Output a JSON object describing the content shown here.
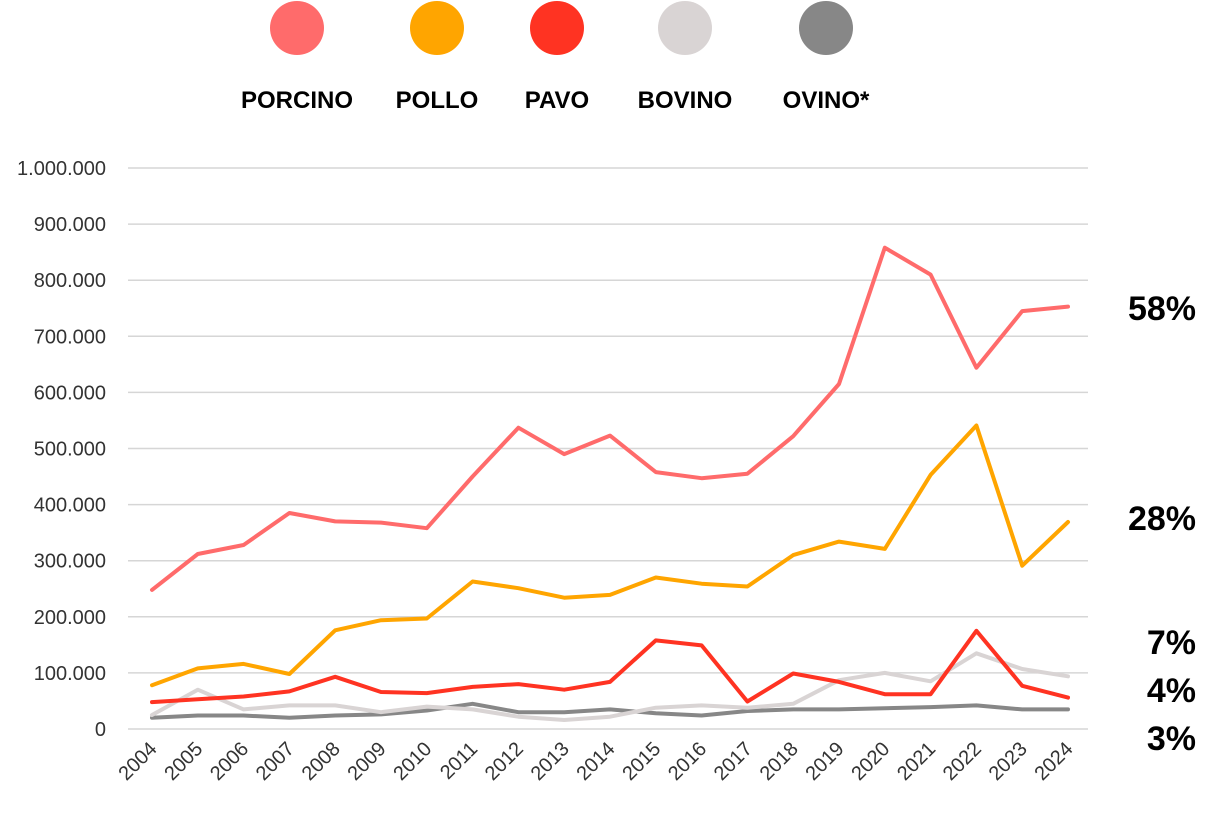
{
  "chart_data": {
    "type": "line",
    "x": [
      "2004",
      "2005",
      "2006",
      "2007",
      "2008",
      "2009",
      "2010",
      "2011",
      "2012",
      "2013",
      "2014",
      "2015",
      "2016",
      "2017",
      "2018",
      "2019",
      "2020",
      "2021",
      "2022",
      "2023",
      "2024"
    ],
    "ylim": [
      0,
      1000000
    ],
    "yticks": [
      {
        "value": 0,
        "label": "0"
      },
      {
        "value": 100000,
        "label": "100.000"
      },
      {
        "value": 200000,
        "label": "200.000"
      },
      {
        "value": 300000,
        "label": "300.000"
      },
      {
        "value": 400000,
        "label": "400.000"
      },
      {
        "value": 500000,
        "label": "500.000"
      },
      {
        "value": 600000,
        "label": "600.000"
      },
      {
        "value": 700000,
        "label": "700.000"
      },
      {
        "value": 800000,
        "label": "800.000"
      },
      {
        "value": 900000,
        "label": "900.000"
      },
      {
        "value": 1000000,
        "label": "1.000.000"
      }
    ],
    "grid": true,
    "legend_position": "top",
    "series": [
      {
        "name": "PORCINO",
        "color": "#ff6b6b",
        "share": "58%",
        "values": [
          248000,
          312000,
          328000,
          385000,
          370000,
          368000,
          358000,
          450000,
          537000,
          490000,
          523000,
          458000,
          447000,
          455000,
          522000,
          615000,
          858000,
          810000,
          644000,
          745000,
          753000
        ]
      },
      {
        "name": "POLLO",
        "color": "#ffa500",
        "share": "28%",
        "values": [
          78000,
          108000,
          116000,
          98000,
          176000,
          194000,
          197000,
          263000,
          251000,
          234000,
          239000,
          270000,
          259000,
          254000,
          310000,
          334000,
          321000,
          453000,
          541000,
          291000,
          369000
        ]
      },
      {
        "name": "PAVO",
        "color": "#ff3322",
        "share": "7%",
        "values": [
          48000,
          53000,
          58000,
          67000,
          93000,
          66000,
          64000,
          75000,
          80000,
          70000,
          84000,
          158000,
          149000,
          49000,
          99000,
          84000,
          62000,
          62000,
          175000,
          77000,
          56000
        ]
      },
      {
        "name": "BOVINO",
        "color": "#d9d4d4",
        "share": "4%",
        "values": [
          25000,
          70000,
          35000,
          42000,
          42000,
          30000,
          40000,
          35000,
          22000,
          16000,
          22000,
          38000,
          42000,
          38000,
          45000,
          87000,
          100000,
          85000,
          135000,
          107000,
          94000
        ]
      },
      {
        "name": "OVINO*",
        "color": "#878787",
        "share": "3%",
        "values": [
          20000,
          24000,
          24000,
          20000,
          24000,
          26000,
          33000,
          45000,
          30000,
          30000,
          35000,
          28000,
          24000,
          32000,
          35000,
          35000,
          37000,
          39000,
          42000,
          35000,
          35000
        ]
      }
    ]
  }
}
